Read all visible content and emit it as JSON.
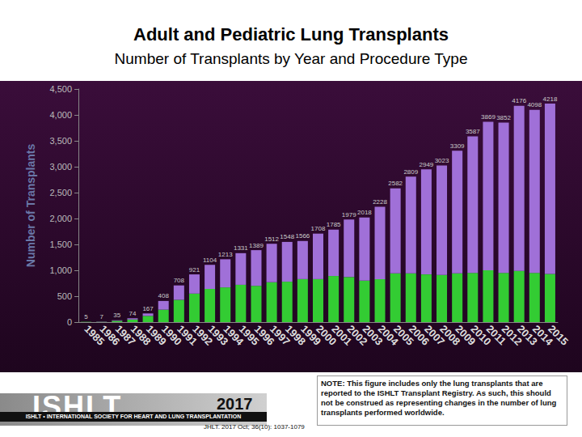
{
  "chart_data": {
    "type": "bar",
    "title": "Adult and Pediatric Lung Transplants",
    "subtitle": "Number of Transplants by Year and Procedure Type",
    "y_label": "Number of Transplants",
    "categories": [
      "1985",
      "1986",
      "1987",
      "1988",
      "1989",
      "1990",
      "1991",
      "1992",
      "1993",
      "1994",
      "1995",
      "1996",
      "1997",
      "1998",
      "1999",
      "2000",
      "2001",
      "2002",
      "2003",
      "2004",
      "2005",
      "2006",
      "2007",
      "2008",
      "2009",
      "2010",
      "2011",
      "2012",
      "2013",
      "2014",
      "2015"
    ],
    "series": [
      {
        "color": "#33cc33",
        "values": [
          5,
          5,
          25,
          50,
          120,
          240,
          430,
          550,
          640,
          670,
          720,
          700,
          770,
          780,
          830,
          830,
          890,
          870,
          800,
          830,
          940,
          940,
          920,
          910,
          940,
          950,
          1000,
          950,
          990,
          950,
          930
        ]
      },
      {
        "color": "#a070d8",
        "values": [
          0,
          2,
          10,
          24,
          47,
          168,
          278,
          371,
          464,
          543,
          611,
          689,
          742,
          768,
          736,
          878,
          895,
          1109,
          1218,
          1398,
          1642,
          1869,
          2029,
          2113,
          2369,
          2637,
          2869,
          2902,
          3186,
          3148,
          3288
        ]
      }
    ],
    "totals": [
      5,
      7,
      35,
      74,
      167,
      408,
      708,
      921,
      1104,
      1213,
      1331,
      1389,
      1512,
      1548,
      1566,
      1708,
      1785,
      1979,
      2018,
      2228,
      2582,
      2809,
      2949,
      3023,
      3309,
      3587,
      3869,
      3852,
      4176,
      4098,
      4218
    ],
    "stacked": true,
    "grid": false,
    "ylim": [
      0,
      4500
    ],
    "yticks": [
      0,
      500,
      1000,
      1500,
      2000,
      2500,
      3000,
      3500,
      4000,
      4500
    ],
    "annotations": {
      "logo": "ISHLT",
      "tagline": "ISHLT • INTERNATIONAL SOCIETY FOR HEART AND LUNG TRANSPLANTATION",
      "year": "2017",
      "reference": "JHLT. 2017 Oct; 36(10): 1037-1079",
      "note": "NOTE: This figure includes only the lung transplants that are reported to the ISHLT Transplant Registry.  As such, this should not be construed as representing changes in the number of lung transplants performed worldwide."
    }
  }
}
